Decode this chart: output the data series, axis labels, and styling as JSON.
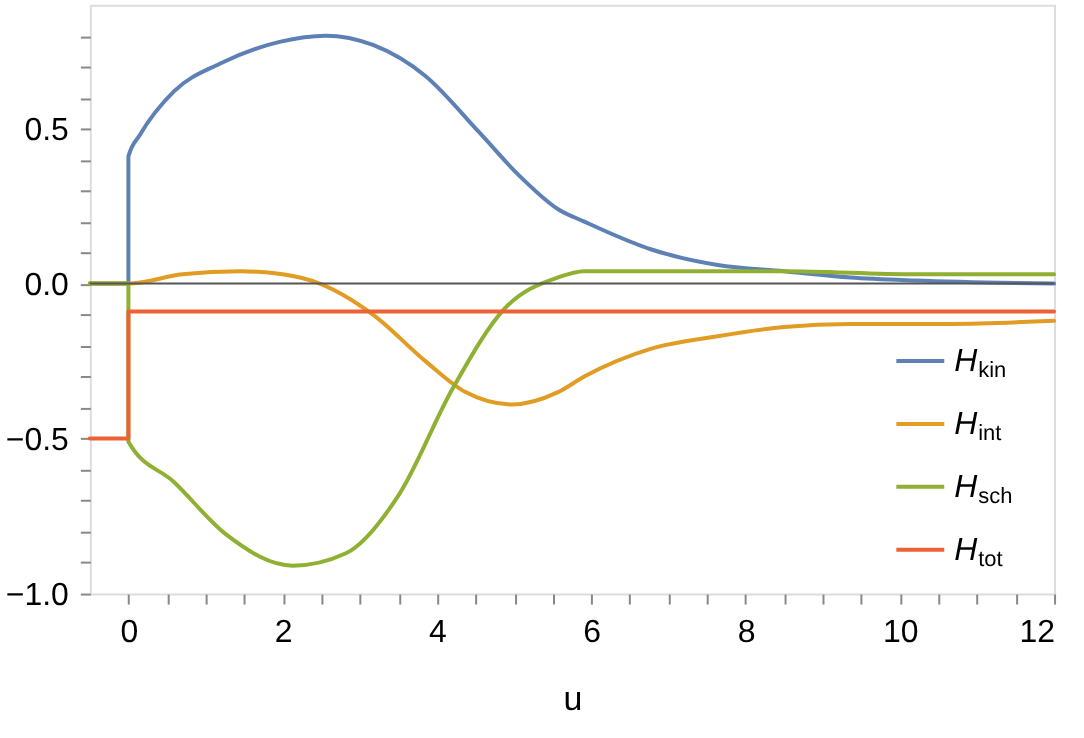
{
  "chart_data": {
    "type": "line",
    "xlabel": "u",
    "xlim": [
      -0.5,
      12
    ],
    "ylim": [
      -1.0,
      0.9
    ],
    "xticks": [
      {
        "value": 0,
        "label": "0"
      },
      {
        "value": 0.5,
        "label": null
      },
      {
        "value": 1,
        "label": null
      },
      {
        "value": 1.5,
        "label": null
      },
      {
        "value": 2,
        "label": "2"
      },
      {
        "value": 2.5,
        "label": null
      },
      {
        "value": 3,
        "label": null
      },
      {
        "value": 3.5,
        "label": null
      },
      {
        "value": 4,
        "label": "4"
      },
      {
        "value": 4.5,
        "label": null
      },
      {
        "value": 5,
        "label": null
      },
      {
        "value": 5.5,
        "label": null
      },
      {
        "value": 6,
        "label": "6"
      },
      {
        "value": 6.5,
        "label": null
      },
      {
        "value": 7,
        "label": null
      },
      {
        "value": 7.5,
        "label": null
      },
      {
        "value": 8,
        "label": "8"
      },
      {
        "value": 8.5,
        "label": null
      },
      {
        "value": 9,
        "label": null
      },
      {
        "value": 9.5,
        "label": null
      },
      {
        "value": 10,
        "label": "10"
      },
      {
        "value": 10.5,
        "label": null
      },
      {
        "value": 11,
        "label": null
      },
      {
        "value": 11.5,
        "label": null
      },
      {
        "value": 12,
        "label": "12"
      }
    ],
    "yticks": [
      {
        "value": -1.0,
        "label": "−1.0"
      },
      {
        "value": -0.9,
        "label": null
      },
      {
        "value": -0.8,
        "label": null
      },
      {
        "value": -0.7,
        "label": null
      },
      {
        "value": -0.6,
        "label": null
      },
      {
        "value": -0.5,
        "label": "−0.5"
      },
      {
        "value": -0.4,
        "label": null
      },
      {
        "value": -0.3,
        "label": null
      },
      {
        "value": -0.2,
        "label": null
      },
      {
        "value": -0.1,
        "label": null
      },
      {
        "value": 0,
        "label": "0.0"
      },
      {
        "value": 0.1,
        "label": null
      },
      {
        "value": 0.2,
        "label": null
      },
      {
        "value": 0.3,
        "label": null
      },
      {
        "value": 0.4,
        "label": null
      },
      {
        "value": 0.5,
        "label": "0.5"
      },
      {
        "value": 0.6,
        "label": null
      },
      {
        "value": 0.7,
        "label": null
      },
      {
        "value": 0.8,
        "label": null
      }
    ],
    "grid": false,
    "legend": "bottom right",
    "line_style": "solid",
    "marker": "none",
    "ref_lines": [
      {
        "axis": "y",
        "value": 0,
        "color": "#555555"
      }
    ],
    "series": [
      {
        "name": "H$_{kin}$",
        "color": "#5e81b5",
        "x": [
          -0.5,
          0,
          0,
          0.15,
          0.59,
          1.19,
          1.96,
          2.56,
          3.17,
          3.85,
          4.54,
          5.06,
          5.57,
          5.91,
          6.78,
          7.64,
          8.5,
          9.36,
          10.2,
          12
        ],
        "values": [
          0,
          0,
          0.41,
          0.48,
          0.62,
          0.71,
          0.78,
          0.8,
          0.77,
          0.67,
          0.49,
          0.35,
          0.24,
          0.2,
          0.11,
          0.06,
          0.04,
          0.02,
          0.01,
          0.0
        ]
      },
      {
        "name": "H$_{int}$",
        "color": "#e19c24",
        "x": [
          -0.5,
          0,
          0.7,
          1.45,
          2.0,
          2.48,
          3.17,
          3.85,
          4.37,
          4.97,
          5.57,
          5.91,
          6.78,
          7.64,
          8.5,
          9.36,
          10.65,
          12
        ],
        "values": [
          0,
          0,
          0.03,
          0.04,
          0.03,
          0,
          -0.1,
          -0.25,
          -0.35,
          -0.39,
          -0.35,
          -0.3,
          -0.21,
          -0.17,
          -0.14,
          -0.13,
          -0.13,
          -0.12
        ]
      },
      {
        "name": "H$_{sch}$",
        "color": "#8fb032",
        "x": [
          -0.5,
          0,
          0,
          0.59,
          1.27,
          2.13,
          2.82,
          3.51,
          4.2,
          4.88,
          5.57,
          5.91,
          6.78,
          8.5,
          10.2,
          12
        ],
        "values": [
          0,
          0,
          -0.51,
          -0.64,
          -0.81,
          -0.91,
          -0.87,
          -0.68,
          -0.34,
          -0.08,
          0.02,
          0.04,
          0.04,
          0.04,
          0.03,
          0.03
        ]
      },
      {
        "name": "H$_{tot}$",
        "color": "#eb6235",
        "x": [
          -0.5,
          0,
          0,
          12
        ],
        "values": [
          -0.5,
          -0.5,
          -0.09,
          -0.09
        ]
      }
    ]
  }
}
